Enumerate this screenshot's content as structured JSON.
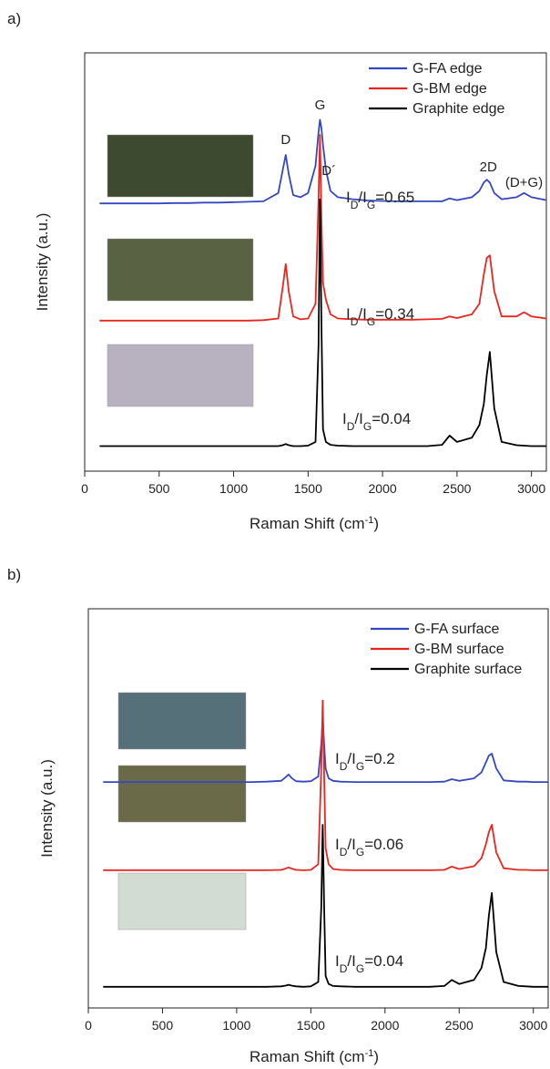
{
  "chart_data": [
    {
      "type": "line",
      "panel": "a)",
      "xlabel": [
        "Raman Shift (cm",
        "-1",
        ")"
      ],
      "ylabel": "Intensity (a.u.)",
      "xlim": [
        0,
        3100
      ],
      "ylim": [
        0,
        100
      ],
      "xticks": [
        0,
        500,
        1000,
        1500,
        2000,
        2500,
        3000
      ],
      "legend": "upper right",
      "x": [
        100,
        200,
        300,
        400,
        500,
        600,
        700,
        800,
        900,
        1000,
        1100,
        1200,
        1300,
        1330,
        1350,
        1370,
        1400,
        1450,
        1500,
        1550,
        1570,
        1580,
        1590,
        1600,
        1620,
        1650,
        1700,
        1800,
        1900,
        2000,
        2100,
        2200,
        2300,
        2400,
        2450,
        2500,
        2600,
        2650,
        2680,
        2700,
        2720,
        2750,
        2800,
        2900,
        2950,
        3000,
        3100
      ],
      "series": [
        {
          "name": "G-FA edge",
          "color": "#3348c0",
          "values": [
            64,
            64,
            64,
            64,
            64,
            64.1,
            64.1,
            64.2,
            64.2,
            64.3,
            64.4,
            64.5,
            66.5,
            72,
            75.6,
            71,
            66,
            65.5,
            66.5,
            73,
            81,
            84,
            82,
            78,
            72,
            67,
            65.5,
            65,
            64.7,
            64.6,
            64.5,
            64.5,
            64.5,
            64.5,
            65.2,
            64.8,
            65.5,
            67,
            69,
            69.7,
            69,
            66.5,
            65,
            65.5,
            66.5,
            65.5,
            64.8
          ]
        },
        {
          "name": "G-BM edge",
          "color": "#e8261f",
          "values": [
            36,
            36,
            36,
            36,
            36,
            36,
            36,
            36,
            36,
            36,
            36,
            36.1,
            36.5,
            44,
            49.5,
            43,
            37,
            36.3,
            36.5,
            40,
            65,
            80.4,
            60,
            45,
            41,
            37.5,
            36.5,
            36.3,
            36.2,
            36.2,
            36.2,
            36.2,
            36.3,
            36.4,
            37,
            36.6,
            37.5,
            40,
            47,
            51,
            51.6,
            43,
            37,
            37,
            38,
            37,
            36.5
          ]
        },
        {
          "name": "Graphite edge",
          "color": "#000000",
          "values": [
            6,
            6,
            6,
            6,
            6,
            6,
            6,
            6,
            6,
            6,
            6,
            6,
            6,
            6.2,
            6.5,
            6.2,
            6,
            6,
            6.1,
            7,
            30,
            65,
            35,
            10,
            7,
            6.3,
            6.1,
            6,
            6,
            6,
            6,
            6,
            6,
            6.3,
            8.5,
            7,
            8,
            11,
            16,
            23,
            28.5,
            15,
            7,
            6.2,
            6.1,
            6,
            6
          ]
        }
      ],
      "peak_labels": [
        "D",
        "G",
        "D´",
        "2D",
        "(D+G)"
      ],
      "ratio_labels": [
        [
          "I",
          "D",
          "/I",
          "G",
          "=0.65"
        ],
        [
          "I",
          "D",
          "/I",
          "G",
          "=0.34"
        ],
        [
          "I",
          "D",
          "/I",
          "G",
          "=0.04"
        ]
      ]
    },
    {
      "type": "line",
      "panel": "b)",
      "xlabel": [
        "Raman Shift (cm",
        "-1",
        ")"
      ],
      "ylabel": "Intensity (a.u.)",
      "xlim": [
        0,
        3100
      ],
      "ylim": [
        0,
        100
      ],
      "xticks": [
        0,
        500,
        1000,
        1500,
        2000,
        2500,
        3000
      ],
      "legend": "upper right",
      "x": [
        100,
        200,
        300,
        400,
        500,
        600,
        700,
        800,
        900,
        1000,
        1100,
        1200,
        1300,
        1330,
        1350,
        1370,
        1400,
        1450,
        1500,
        1550,
        1570,
        1580,
        1590,
        1600,
        1620,
        1650,
        1700,
        1800,
        1900,
        2000,
        2100,
        2200,
        2300,
        2400,
        2450,
        2500,
        2600,
        2650,
        2680,
        2700,
        2720,
        2750,
        2800,
        2900,
        2950,
        3000,
        3100
      ],
      "series": [
        {
          "name": "G-FA surface",
          "color": "#3348c0",
          "values": [
            56.6,
            56.6,
            56.6,
            56.6,
            56.6,
            56.6,
            56.6,
            56.6,
            56.6,
            56.6,
            56.6,
            56.7,
            56.9,
            57.8,
            58.5,
            57.6,
            56.8,
            56.7,
            56.8,
            58,
            66,
            72.6,
            66,
            60,
            57.5,
            56.9,
            56.7,
            56.6,
            56.6,
            56.6,
            56.6,
            56.6,
            56.6,
            56.7,
            57.3,
            56.9,
            57.5,
            59,
            61.5,
            63.2,
            63.7,
            60,
            57,
            56.7,
            56.7,
            56.6,
            56.6
          ]
        },
        {
          "name": "G-BM surface",
          "color": "#e8261f",
          "values": [
            34.5,
            34.5,
            34.5,
            34.5,
            34.5,
            34.5,
            34.5,
            34.5,
            34.5,
            34.5,
            34.5,
            34.5,
            34.6,
            34.9,
            35.2,
            34.9,
            34.6,
            34.5,
            34.6,
            36,
            60,
            77,
            58,
            40,
            36,
            34.8,
            34.6,
            34.5,
            34.5,
            34.5,
            34.5,
            34.5,
            34.5,
            34.6,
            35.4,
            34.8,
            35.5,
            37.5,
            41,
            44,
            45.9,
            39,
            35,
            34.6,
            34.6,
            34.5,
            34.5
          ]
        },
        {
          "name": "Graphite surface",
          "color": "#000000",
          "values": [
            5.3,
            5.3,
            5.3,
            5.3,
            5.3,
            5.3,
            5.3,
            5.3,
            5.3,
            5.3,
            5.3,
            5.3,
            5.4,
            5.6,
            5.8,
            5.6,
            5.4,
            5.3,
            5.4,
            6.5,
            25,
            45.9,
            25,
            8,
            6,
            5.5,
            5.4,
            5.3,
            5.3,
            5.3,
            5.3,
            5.3,
            5.3,
            5.5,
            7,
            6,
            7,
            10,
            15,
            23,
            28.8,
            14,
            6.5,
            5.5,
            5.4,
            5.3,
            5.3
          ]
        }
      ],
      "ratio_labels": [
        [
          "I",
          "D",
          "/I",
          "G",
          "=0.2"
        ],
        [
          "I",
          "D",
          "/I",
          "G",
          "=0.06"
        ],
        [
          "I",
          "D",
          "/I",
          "G",
          "=0.04"
        ]
      ]
    }
  ]
}
